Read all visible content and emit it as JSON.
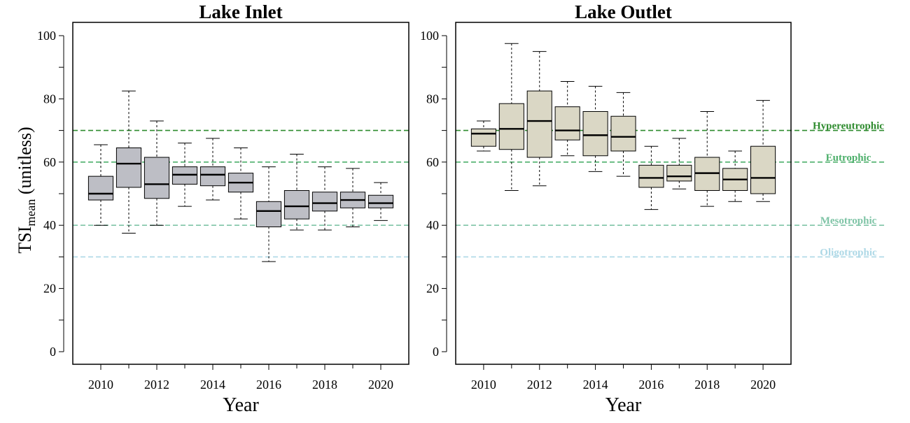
{
  "chart_data": {
    "type": "boxplot",
    "ylabel_main": "TSI",
    "ylabel_sub": "mean",
    "ylabel_unit": "(unitless)",
    "xlabel": "Year",
    "ylim": [
      0,
      100
    ],
    "yticks": [
      0,
      20,
      40,
      60,
      80,
      100
    ],
    "xlim": [
      2009,
      2021
    ],
    "xticks": [
      2010,
      2012,
      2014,
      2016,
      2018,
      2020
    ],
    "reference_lines": [
      {
        "name": "Hypereutrophic",
        "value": 70,
        "color": "#2e8b2e"
      },
      {
        "name": "Eutrophic",
        "value": 60,
        "color": "#4caf6a"
      },
      {
        "name": "Mesotrophic",
        "value": 40,
        "color": "#7fc4a6"
      },
      {
        "name": "Oligotrophic",
        "value": 30,
        "color": "#add8e6"
      }
    ],
    "panels": [
      {
        "title": "Lake Inlet",
        "box_color": "#bdbec5",
        "boxes": [
          {
            "year": 2010,
            "min": 40,
            "q1": 48,
            "median": 50,
            "q3": 55.5,
            "max": 65.5
          },
          {
            "year": 2011,
            "min": 37.5,
            "q1": 52,
            "median": 59.5,
            "q3": 64.5,
            "max": 82.5
          },
          {
            "year": 2012,
            "min": 40,
            "q1": 48.5,
            "median": 53,
            "q3": 61.5,
            "max": 73
          },
          {
            "year": 2013,
            "min": 46,
            "q1": 53,
            "median": 56,
            "q3": 58.5,
            "max": 66
          },
          {
            "year": 2014,
            "min": 48,
            "q1": 52.5,
            "median": 56,
            "q3": 58.5,
            "max": 67.5
          },
          {
            "year": 2015,
            "min": 42,
            "q1": 50.5,
            "median": 53.5,
            "q3": 56.5,
            "max": 64.5
          },
          {
            "year": 2016,
            "min": 28.5,
            "q1": 39.5,
            "median": 44.5,
            "q3": 47.5,
            "max": 58.5
          },
          {
            "year": 2017,
            "min": 38.5,
            "q1": 42,
            "median": 46,
            "q3": 51,
            "max": 62.5
          },
          {
            "year": 2018,
            "min": 38.5,
            "q1": 44.5,
            "median": 47,
            "q3": 50.5,
            "max": 58.5
          },
          {
            "year": 2019,
            "min": 39.5,
            "q1": 45.5,
            "median": 48,
            "q3": 50.5,
            "max": 58
          },
          {
            "year": 2020,
            "min": 41.5,
            "q1": 45.5,
            "median": 47,
            "q3": 49.5,
            "max": 53.5
          }
        ]
      },
      {
        "title": "Lake Outlet",
        "box_color": "#dad7c5",
        "boxes": [
          {
            "year": 2010,
            "min": 63.5,
            "q1": 65,
            "median": 69,
            "q3": 70.5,
            "max": 73
          },
          {
            "year": 2011,
            "min": 51,
            "q1": 64,
            "median": 70.5,
            "q3": 78.5,
            "max": 97.5
          },
          {
            "year": 2012,
            "min": 52.5,
            "q1": 61.5,
            "median": 73,
            "q3": 82.5,
            "max": 95
          },
          {
            "year": 2013,
            "min": 62,
            "q1": 67,
            "median": 70,
            "q3": 77.5,
            "max": 85.5
          },
          {
            "year": 2014,
            "min": 57,
            "q1": 62,
            "median": 68.5,
            "q3": 76,
            "max": 84
          },
          {
            "year": 2015,
            "min": 55.5,
            "q1": 63.5,
            "median": 68,
            "q3": 74.5,
            "max": 82
          },
          {
            "year": 2016,
            "min": 45,
            "q1": 52,
            "median": 55,
            "q3": 59,
            "max": 65
          },
          {
            "year": 2017,
            "min": 51.5,
            "q1": 54,
            "median": 55.5,
            "q3": 59,
            "max": 67.5
          },
          {
            "year": 2018,
            "min": 46,
            "q1": 51,
            "median": 56.5,
            "q3": 61.5,
            "max": 76
          },
          {
            "year": 2019,
            "min": 47.5,
            "q1": 51,
            "median": 54.5,
            "q3": 58,
            "max": 63.5
          },
          {
            "year": 2020,
            "min": 47.5,
            "q1": 50,
            "median": 55,
            "q3": 65,
            "max": 79.5
          }
        ]
      }
    ]
  }
}
